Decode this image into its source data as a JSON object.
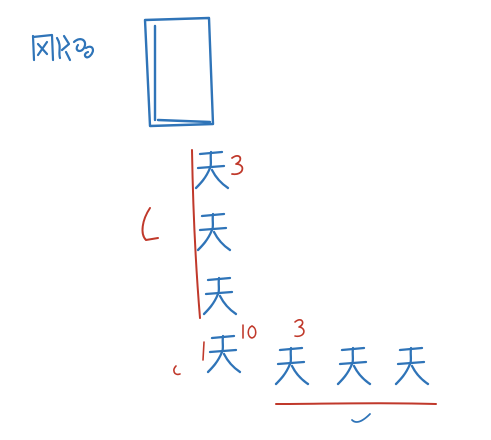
{
  "colors": {
    "paper": "#ffffff",
    "ink_blue": "#2f74b8",
    "ink_red": "#c0392b"
  },
  "sketch": {
    "title_text": "网络",
    "figure_glyph": "天",
    "top_exponent": "3",
    "note_left": "L",
    "mid_exponent": "10",
    "right_exponent": "3",
    "note_small": "L"
  }
}
